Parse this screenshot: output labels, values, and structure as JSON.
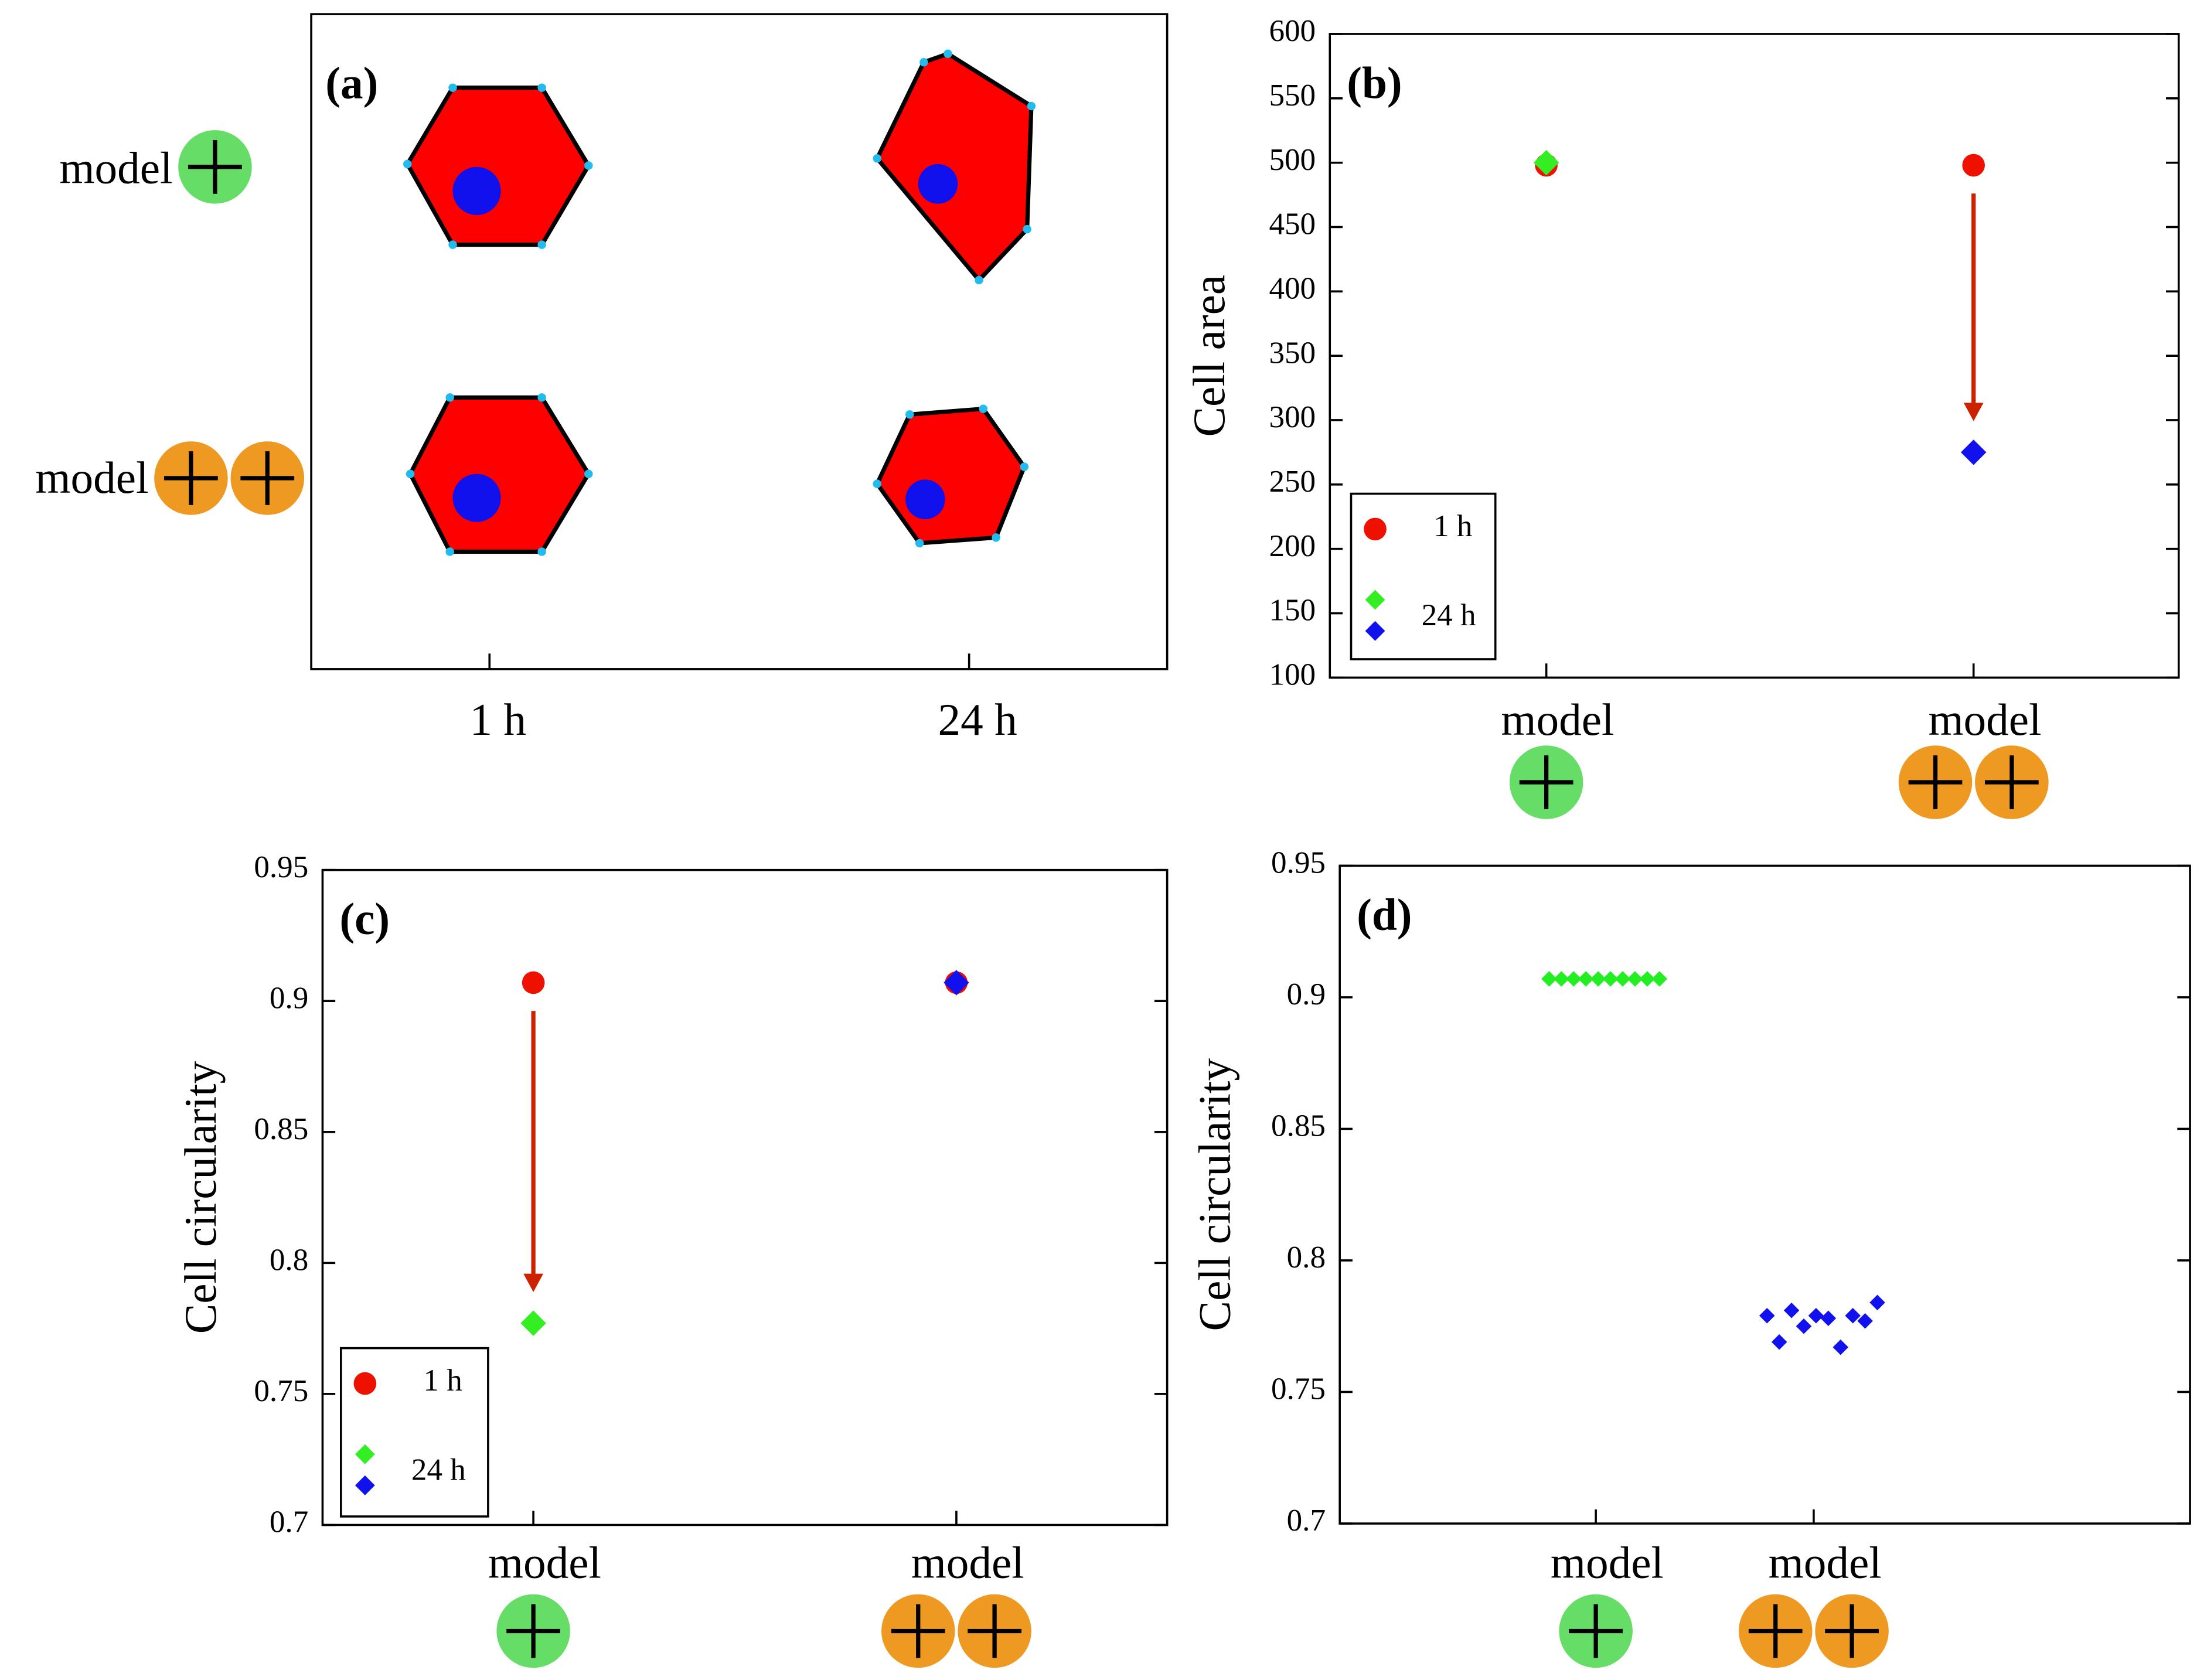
{
  "chart_data": [
    {
      "type": "diagram",
      "panel": "(a)",
      "rows": [
        "model",
        "model"
      ],
      "columns": [
        "1 h",
        "24 h"
      ]
    },
    {
      "type": "scatter",
      "panel": "(b)",
      "y_label": "Cell area",
      "categories": [
        "model",
        "model"
      ],
      "ylim": [
        100,
        600
      ],
      "yticks": [
        100,
        150,
        200,
        250,
        300,
        350,
        400,
        450,
        500,
        550,
        600
      ],
      "legend": "lower left",
      "series": [
        {
          "name": "1 h",
          "color": "#ee1100",
          "marker": "circle",
          "values": [
            498,
            498
          ]
        },
        {
          "name": "24 h",
          "colors": [
            "#33ee22",
            "#1111ee"
          ],
          "marker": "diamond",
          "values": [
            500,
            275
          ]
        }
      ]
    },
    {
      "type": "scatter",
      "panel": "(c)",
      "y_label": "Cell circularity",
      "categories": [
        "model",
        "model"
      ],
      "ylim": [
        0.7,
        0.95
      ],
      "yticks": [
        0.7,
        0.75,
        0.8,
        0.85,
        0.9,
        0.95
      ],
      "legend": "lower left",
      "series": [
        {
          "name": "1 h",
          "color": "#ee1100",
          "marker": "circle",
          "values": [
            0.907,
            0.907
          ]
        },
        {
          "name": "24 h",
          "colors": [
            "#33ee22",
            "#1111ee"
          ],
          "marker": "diamond",
          "values": [
            0.777,
            0.907
          ]
        }
      ]
    },
    {
      "type": "strip",
      "panel": "(d)",
      "y_label": "Cell circularity",
      "categories": [
        "model",
        "model"
      ],
      "ylim": [
        0.7,
        0.95
      ],
      "yticks": [
        0.7,
        0.75,
        0.8,
        0.85,
        0.9,
        0.95
      ],
      "series": [
        {
          "color": "#22ee22",
          "marker": "diamond",
          "values": [
            0.907,
            0.907,
            0.907,
            0.907,
            0.907,
            0.907,
            0.907,
            0.907,
            0.907,
            0.907
          ]
        },
        {
          "color": "#1111ee",
          "marker": "diamond",
          "values": [
            0.779,
            0.769,
            0.781,
            0.775,
            0.779,
            0.778,
            0.767,
            0.779,
            0.777,
            0.784
          ]
        }
      ]
    }
  ]
}
